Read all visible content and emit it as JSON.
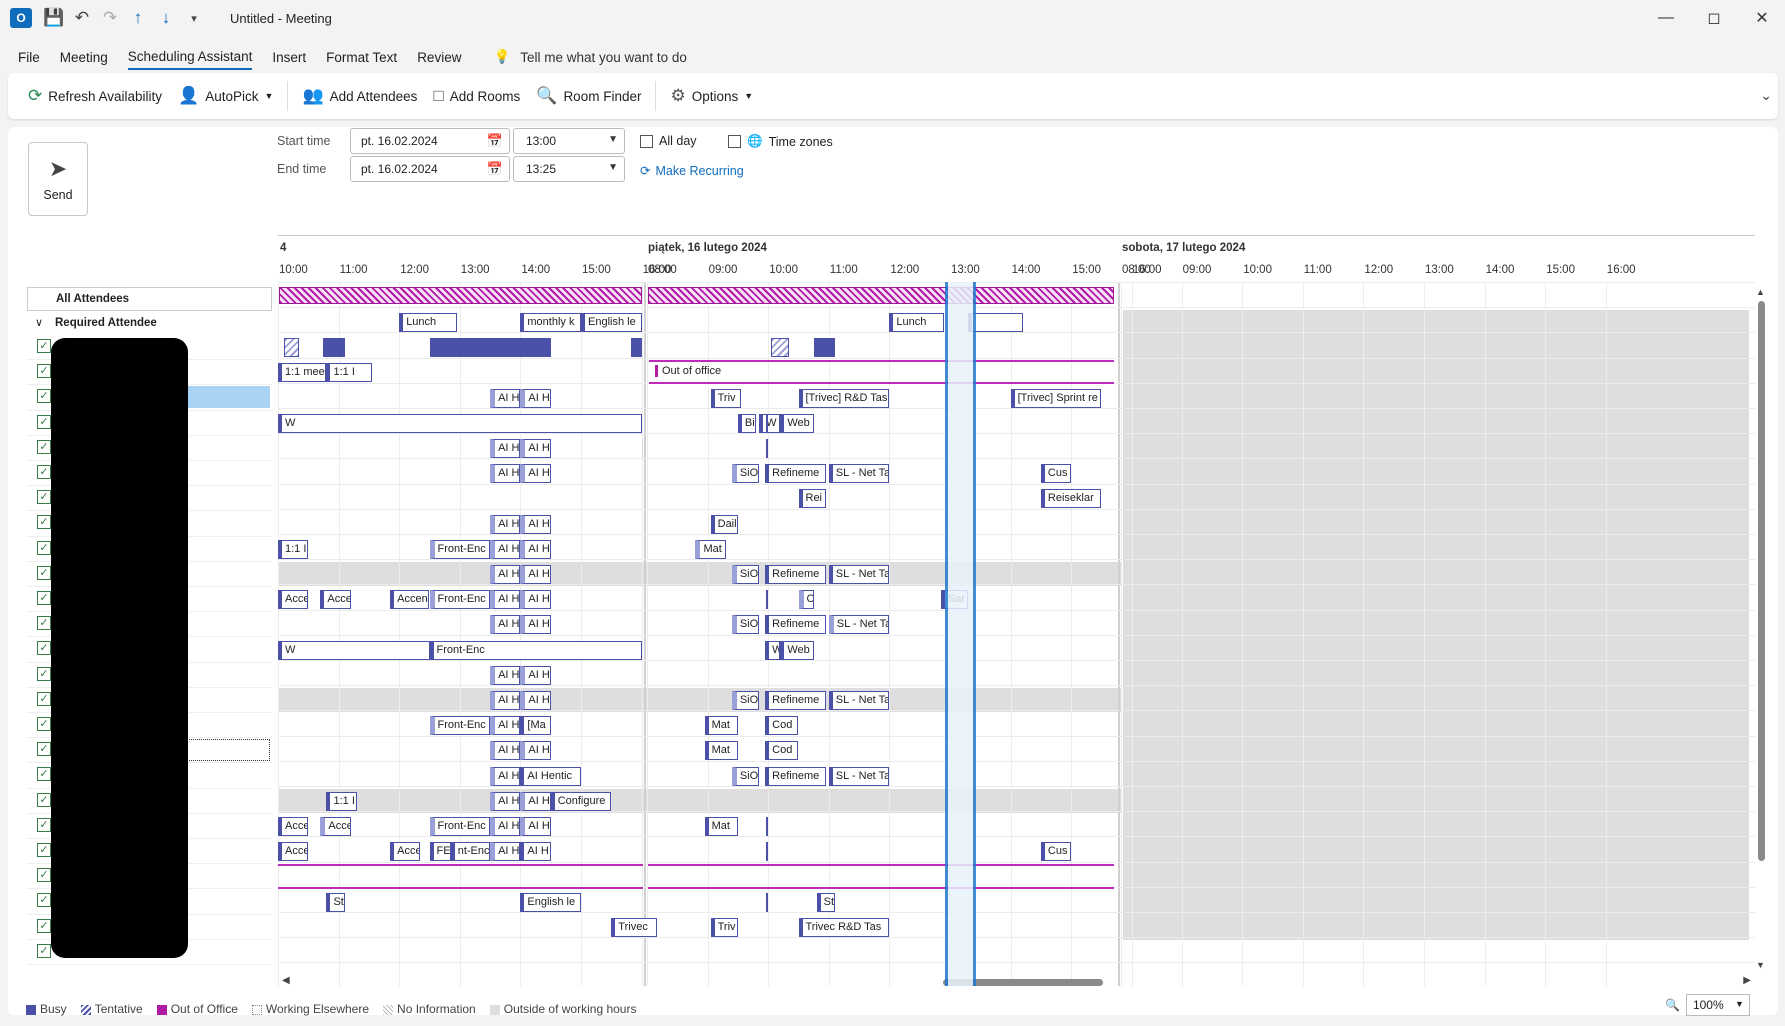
{
  "window": {
    "title": "Untitled  -  Meeting",
    "app_logo": "O"
  },
  "menu": {
    "items": [
      "File",
      "Meeting",
      "Scheduling Assistant",
      "Insert",
      "Format Text",
      "Review"
    ],
    "active": "Scheduling Assistant",
    "tell_me": "Tell me what you want to do"
  },
  "ribbon": {
    "refresh": "Refresh Availability",
    "autopick": "AutoPick",
    "add_attendees": "Add Attendees",
    "add_rooms": "Add Rooms",
    "room_finder": "Room Finder",
    "options": "Options"
  },
  "form": {
    "send": "Send",
    "start_label": "Start time",
    "end_label": "End time",
    "start_date": "pt. 16.02.2024",
    "start_time": "13:00",
    "end_date": "pt. 16.02.2024",
    "end_time": "13:25",
    "all_day": "All day",
    "time_zones": "Time zones",
    "make_recurring": "Make Recurring"
  },
  "grid": {
    "day_prev": "4",
    "day1": "piątek, 16 lutego 2024",
    "day2": "sobota, 17 lutego 2024",
    "hours_prev": [
      "10:00",
      "11:00",
      "12:00",
      "13:00",
      "14:00",
      "15:00",
      "16:00"
    ],
    "hours_day1": [
      "08:00",
      "09:00",
      "10:00",
      "11:00",
      "12:00",
      "13:00",
      "14:00",
      "15:00",
      "16:00"
    ],
    "hours_day2": [
      "08:00",
      "09:00",
      "10:00",
      "11:00",
      "12:00",
      "13:00",
      "14:00",
      "15:00",
      "16:00"
    ],
    "all_attendees": "All Attendees",
    "required_attendee": "Required Attendee",
    "out_of_office": "Out of office",
    "events": {
      "lunch1": "Lunch",
      "monthly": "monthly k",
      "english1": "English le",
      "lunch2": "Lunch",
      "meet1": "1:1 mee",
      "meet2": "1:1 I",
      "aih": "AI H",
      "triv1": "Triv",
      "rd": "[Trivec] R&D Tas",
      "sprint": "[Trivec] Sprint re",
      "w": "W",
      "bi": "Bi",
      "web": "Web",
      "sio": "SiO",
      "refine": "Refineme",
      "slnet": "SL - Net Ta",
      "cus": "Cus",
      "rei": "Rei",
      "reiseklar": "Reiseklar",
      "dail": "Dail",
      "one": "1:1 I",
      "front": "Front-Enc",
      "mat": "Mat",
      "acc": "Acce",
      "accer": "Accen",
      "c": "C",
      "sar": "Sar",
      "ma": "[Ma",
      "cod": "Cod",
      "ahentic": "AI Hentic",
      "configure": "Configure",
      "fe": "FE",
      "ntenc": "nt-Enc",
      "st": "St",
      "english2": "English le",
      "trivec1": "Trivec",
      "trivec2": "Trivec R&D Tas"
    }
  },
  "legend": {
    "busy": "Busy",
    "tentative": "Tentative",
    "ooo": "Out of Office",
    "working_elsewhere": "Working Elsewhere",
    "no_info": "No Information",
    "outside": "Outside of working hours"
  },
  "zoom": "100%",
  "colors": {
    "busy": "#4b50a8",
    "ooo": "#b01aa7",
    "accent": "#0f6cbd"
  }
}
